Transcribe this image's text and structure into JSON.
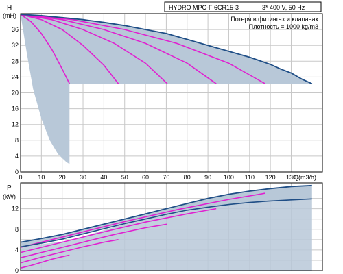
{
  "header": {
    "model": "HYDRO MPC-F 6CR15-3",
    "supply": "3* 400 V, 50 Hz",
    "note_losses": "Потеря в фитингах и клапанах",
    "note_density": "Плотность = 1000 kg/m3"
  },
  "colors": {
    "envelope": "#1f4e86",
    "pump_curves": "#e020d0",
    "shading": "#b8c8d8",
    "grid": "#c8c8c8"
  },
  "chart_data": [
    {
      "type": "line",
      "ylabel": "H",
      "yunit": "(mH)",
      "xlabel": "Q(m3/h)",
      "xlim": [
        0,
        145
      ],
      "ylim": [
        0,
        40
      ],
      "x_ticks": [
        0,
        10,
        20,
        30,
        40,
        50,
        60,
        70,
        80,
        90,
        100,
        110,
        120,
        130
      ],
      "y_ticks": [
        0,
        4,
        8,
        12,
        16,
        20,
        24,
        28,
        32,
        36
      ],
      "grid": true,
      "envelope": {
        "x": [
          0,
          10,
          20,
          30,
          40,
          50,
          60,
          70,
          80,
          90,
          100,
          110,
          120,
          125,
          130,
          135,
          140
        ],
        "y": [
          39.8,
          39.5,
          39,
          38.5,
          37.8,
          37,
          36,
          35,
          33.5,
          32,
          30.5,
          29,
          27.2,
          26,
          25,
          23.5,
          22.3
        ]
      },
      "envelope_lower": {
        "x": [
          0,
          3,
          6,
          10,
          14,
          18,
          22,
          23.5
        ],
        "y": [
          39.8,
          30,
          21,
          13.5,
          8,
          4.5,
          2.5,
          2
        ]
      },
      "cutoff_h": 22.3,
      "series": [
        {
          "pumps": 1,
          "x": [
            0,
            5,
            10,
            15,
            20,
            23.5
          ],
          "y": [
            39.8,
            38,
            35,
            31,
            26,
            22.3
          ]
        },
        {
          "pumps": 2,
          "x": [
            0,
            10,
            20,
            30,
            40,
            47
          ],
          "y": [
            39.8,
            38.5,
            36,
            32,
            27,
            22.3
          ]
        },
        {
          "pumps": 3,
          "x": [
            0,
            15,
            30,
            45,
            60,
            70.5
          ],
          "y": [
            39.8,
            38.5,
            36,
            32.5,
            27.5,
            22.3
          ]
        },
        {
          "pumps": 4,
          "x": [
            0,
            20,
            40,
            60,
            80,
            94
          ],
          "y": [
            39.8,
            38.5,
            36,
            32.5,
            27.5,
            22.3
          ]
        },
        {
          "pumps": 5,
          "x": [
            0,
            25,
            50,
            75,
            100,
            117.5
          ],
          "y": [
            39.8,
            38.5,
            36,
            32.5,
            27.5,
            22.3
          ]
        }
      ]
    },
    {
      "type": "line",
      "ylabel": "P",
      "yunit": "(kW)",
      "xlim": [
        0,
        145
      ],
      "ylim": [
        0,
        17
      ],
      "y_ticks": [
        0,
        4,
        8,
        12
      ],
      "grid": true,
      "envelope": {
        "x": [
          0,
          10,
          20,
          30,
          40,
          50,
          60,
          70,
          80,
          90,
          100,
          110,
          120,
          130,
          140
        ],
        "y": [
          5.5,
          6.2,
          7,
          8,
          9,
          10,
          11,
          12,
          13,
          14,
          14.8,
          15.4,
          15.9,
          16.3,
          16.5
        ]
      },
      "envelope_lower": {
        "x": [
          0,
          10,
          20,
          30,
          40,
          50,
          60,
          70,
          80,
          90,
          100,
          110,
          120,
          130,
          140
        ],
        "y": [
          4.6,
          5.3,
          6.1,
          7.1,
          8.1,
          9.1,
          10,
          10.9,
          11.7,
          12.3,
          12.8,
          13.2,
          13.5,
          13.7,
          13.9
        ]
      },
      "series": [
        {
          "pumps": 1,
          "x": [
            0,
            5,
            10,
            15,
            20,
            23.5
          ],
          "y": [
            0.5,
            1,
            1.6,
            2.2,
            2.7,
            3
          ]
        },
        {
          "pumps": 2,
          "x": [
            0,
            10,
            20,
            30,
            40,
            47
          ],
          "y": [
            1.5,
            2.6,
            3.6,
            4.6,
            5.5,
            6
          ]
        },
        {
          "pumps": 3,
          "x": [
            0,
            15,
            30,
            45,
            60,
            70.5
          ],
          "y": [
            2.5,
            4,
            5.5,
            7,
            8.3,
            9
          ]
        },
        {
          "pumps": 4,
          "x": [
            0,
            20,
            40,
            60,
            80,
            94
          ],
          "y": [
            3.5,
            5.5,
            7.5,
            9.4,
            11,
            12
          ]
        },
        {
          "pumps": 5,
          "x": [
            0,
            25,
            50,
            75,
            100,
            117.5
          ],
          "y": [
            4.5,
            7,
            9.5,
            11.8,
            13.8,
            15
          ]
        }
      ]
    }
  ]
}
